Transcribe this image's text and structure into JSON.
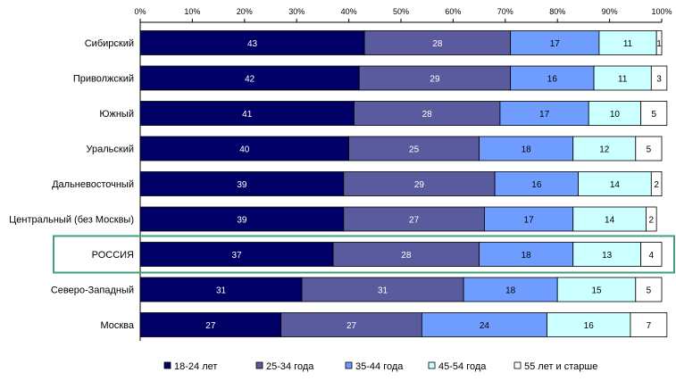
{
  "chart_data": {
    "type": "bar",
    "orientation": "horizontal",
    "stacked": true,
    "percent_stacked": true,
    "title": "",
    "xlabel": "",
    "ylabel": "",
    "xlim": [
      0,
      100
    ],
    "x_ticks": [
      "0%",
      "10%",
      "20%",
      "30%",
      "40%",
      "50%",
      "60%",
      "70%",
      "80%",
      "90%",
      "100%"
    ],
    "x_axis_position": "top",
    "grid": false,
    "legend_position": "bottom",
    "highlighted_category": "РОССИЯ",
    "highlight_color": "#3f9f7f",
    "categories": [
      "Сибирский",
      "Приволжский",
      "Южный",
      "Уральский",
      "Дальневосточный",
      "Центральный (без Москвы)",
      "РОССИЯ",
      "Северо-Западный",
      "Москва"
    ],
    "series": [
      {
        "name": "18-24 лет",
        "color": "#000066",
        "label_color": "#ffffff",
        "values": [
          43,
          42,
          41,
          40,
          39,
          39,
          37,
          31,
          27
        ]
      },
      {
        "name": "25-34 года",
        "color": "#5a5a9e",
        "label_color": "#ffffff",
        "values": [
          28,
          29,
          28,
          25,
          29,
          27,
          28,
          31,
          27
        ]
      },
      {
        "name": "35-44 года",
        "color": "#6e9dff",
        "label_color": "#000000",
        "values": [
          17,
          16,
          17,
          18,
          16,
          17,
          18,
          18,
          24
        ]
      },
      {
        "name": "45-54 года",
        "color": "#ccffff",
        "label_color": "#000000",
        "values": [
          11,
          11,
          10,
          12,
          14,
          14,
          13,
          15,
          16
        ]
      },
      {
        "name": "55 лет и старше",
        "color": "#ffffff",
        "label_color": "#000000",
        "values": [
          1,
          3,
          5,
          5,
          2,
          2,
          4,
          5,
          7
        ]
      }
    ]
  }
}
